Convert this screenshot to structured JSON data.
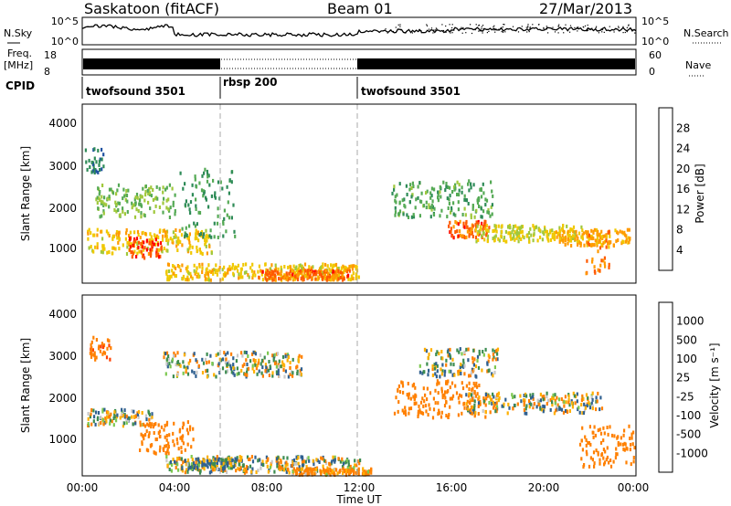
{
  "header": {
    "station": "Saskatoon (fitACF)",
    "beam": "Beam 01",
    "date": "27/Mar/2013"
  },
  "sky_panel": {
    "left_label": "N.Sky",
    "right_label": "N.Search",
    "left_ticks": [
      "10^5",
      "10^0"
    ],
    "right_ticks": [
      "10^5",
      "10^0"
    ]
  },
  "freq_panel": {
    "left_label_line1": "Freq.",
    "left_label_line2": "[MHz]",
    "left_ticks": [
      "18",
      "8"
    ],
    "right_label": "Nave",
    "right_ticks": [
      "60",
      "0"
    ]
  },
  "cpid_panel": {
    "label": "CPID",
    "segments": [
      {
        "name": "twofsound 3501",
        "start_h": 0,
        "end_h": 6
      },
      {
        "name": "rbsp 200",
        "start_h": 6,
        "end_h": 12
      },
      {
        "name": "twofsound 3501",
        "start_h": 12,
        "end_h": 24
      }
    ]
  },
  "power_panel": {
    "ylabel": "Slant Range [km]",
    "yticks": [
      "4000",
      "3000",
      "2000",
      "1000"
    ],
    "colorbar_label": "Power [dB]",
    "colorbar_ticks": [
      "28",
      "24",
      "20",
      "16",
      "12",
      "8",
      "4"
    ]
  },
  "velocity_panel": {
    "ylabel": "Slant Range [km]",
    "yticks": [
      "4000",
      "3000",
      "2000",
      "1000"
    ],
    "colorbar_label": "Velocity [m s⁻¹]",
    "colorbar_ticks": [
      "1000",
      "500",
      "100",
      "25",
      "-25",
      "-100",
      "-500",
      "-1000"
    ]
  },
  "xaxis": {
    "ticks": [
      "00:00",
      "04:00",
      "08:00",
      "12:00",
      "16:00",
      "20:00",
      "00:00"
    ],
    "label": "Time UT"
  },
  "colors": {
    "power_scale": [
      "#0000ff",
      "#1e50a0",
      "#2e8b57",
      "#55aa55",
      "#a0c83c",
      "#f0c800",
      "#ff9a00",
      "#ff5a00",
      "#ff0000"
    ],
    "velocity_scale": [
      "#2030a0",
      "#306090",
      "#3c8c50",
      "#7cc850",
      "#c8c8c8",
      "#c8c8c8",
      "#ffb000",
      "#ff8000",
      "#ff4000",
      "#ff0000"
    ]
  },
  "chart_data": [
    {
      "type": "heatmap",
      "title": "Power",
      "xlabel": "Time UT",
      "ylabel": "Slant Range [km]",
      "xlim": [
        0,
        24
      ],
      "ylim": [
        180,
        4600
      ],
      "colorbar": {
        "label": "Power [dB]",
        "range": [
          0,
          32
        ]
      },
      "bands": [
        {
          "t": [
            0.2,
            5.6
          ],
          "r": [
            900,
            1500
          ],
          "level": 20
        },
        {
          "t": [
            2.0,
            3.4
          ],
          "r": [
            800,
            1300
          ],
          "level": 28
        },
        {
          "t": [
            3.6,
            12.0
          ],
          "r": [
            250,
            650
          ],
          "level": 20
        },
        {
          "t": [
            7.6,
            11.6
          ],
          "r": [
            250,
            500
          ],
          "level": 26
        },
        {
          "t": [
            0.5,
            4.0
          ],
          "r": [
            1800,
            2600
          ],
          "level": 14
        },
        {
          "t": [
            4.2,
            6.6
          ],
          "r": [
            1300,
            3000
          ],
          "level": 10
        },
        {
          "t": [
            13.4,
            17.8
          ],
          "r": [
            1800,
            2700
          ],
          "level": 12
        },
        {
          "t": [
            15.8,
            17.6
          ],
          "r": [
            1300,
            1700
          ],
          "level": 26
        },
        {
          "t": [
            17.0,
            21.6
          ],
          "r": [
            1200,
            1600
          ],
          "level": 18
        },
        {
          "t": [
            20.5,
            23.7
          ],
          "r": [
            1100,
            1500
          ],
          "level": 22
        },
        {
          "t": [
            21.8,
            22.8
          ],
          "r": [
            400,
            1500
          ],
          "level": 24
        },
        {
          "t": [
            0.1,
            0.9
          ],
          "r": [
            2900,
            3500
          ],
          "level": 8
        }
      ]
    },
    {
      "type": "heatmap",
      "title": "Velocity",
      "xlabel": "Time UT",
      "ylabel": "Slant Range [km]",
      "xlim": [
        0,
        24
      ],
      "ylim": [
        180,
        4600
      ],
      "colorbar": {
        "label": "Velocity [m s⁻¹]",
        "range": [
          -1000,
          1000
        ]
      },
      "bands": [
        {
          "t": [
            0.2,
            3.0
          ],
          "r": [
            1400,
            1800
          ],
          "level": 0
        },
        {
          "t": [
            2.4,
            4.8
          ],
          "r": [
            700,
            1500
          ],
          "level": -300
        },
        {
          "t": [
            3.6,
            12.0
          ],
          "r": [
            250,
            650
          ],
          "level": 0
        },
        {
          "t": [
            4.5,
            7.0
          ],
          "r": [
            350,
            600
          ],
          "level": 80
        },
        {
          "t": [
            9.0,
            12.5
          ],
          "r": [
            200,
            350
          ],
          "level": -150
        },
        {
          "t": [
            3.5,
            9.5
          ],
          "r": [
            2600,
            3200
          ],
          "level": 0
        },
        {
          "t": [
            13.5,
            17.5
          ],
          "r": [
            1600,
            2500
          ],
          "level": -300
        },
        {
          "t": [
            16.6,
            22.5
          ],
          "r": [
            1700,
            2200
          ],
          "level": 0
        },
        {
          "t": [
            14.6,
            18.0
          ],
          "r": [
            2600,
            3300
          ],
          "level": 0
        },
        {
          "t": [
            21.5,
            23.9
          ],
          "r": [
            400,
            1400
          ],
          "level": -300
        },
        {
          "t": [
            0.3,
            1.2
          ],
          "r": [
            3000,
            3600
          ],
          "level": -400
        }
      ]
    }
  ]
}
